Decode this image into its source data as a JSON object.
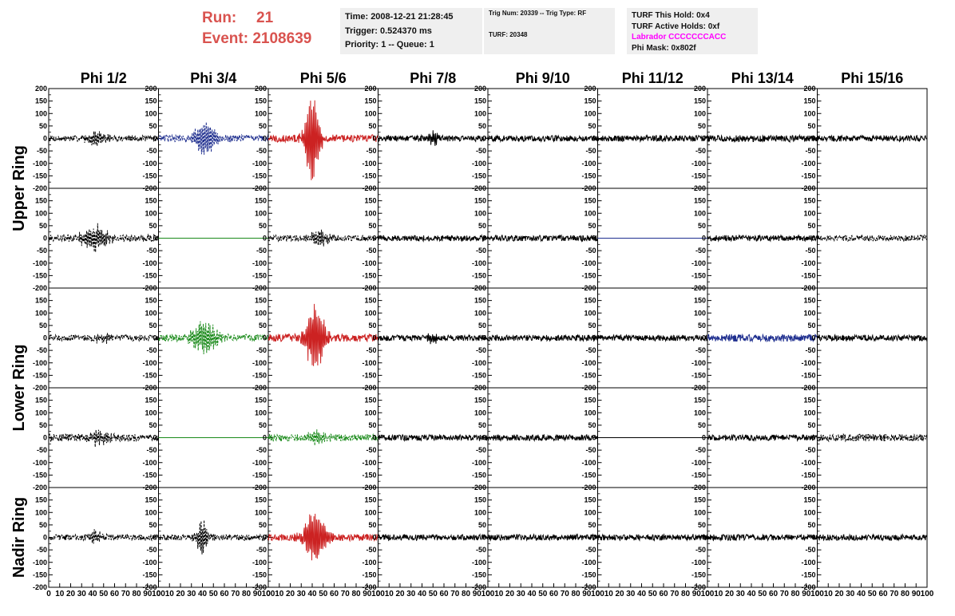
{
  "header": {
    "run_label": "Run:",
    "run_value": "21",
    "event_label": "Event:",
    "event_value": "2108639"
  },
  "info_time": {
    "time": "Time: 2008-12-21 21:28:45",
    "trigger": "Trigger: 0.524370 ms",
    "priority": "Priority: 1 -- Queue: 1"
  },
  "info_trig": {
    "trig": "Trig Num: 20339 -- Trig Type: RF",
    "turf": "TURF: 20348"
  },
  "info_turf": {
    "this_hold": "TURF This Hold: 0x4",
    "active_holds": "TURF Active Holds: 0xf",
    "labrador": "Labrador CCCCCCCACC",
    "phi_mask": "Phi Mask: 0x802f"
  },
  "chart_data": {
    "type": "line",
    "columns": [
      "Phi 1/2",
      "Phi 3/4",
      "Phi 5/6",
      "Phi 7/8",
      "Phi 9/10",
      "Phi 11/12",
      "Phi 13/14",
      "Phi 15/16"
    ],
    "ring_labels": [
      "Upper Ring",
      "Lower Ring",
      "Nadir Ring"
    ],
    "xlim": [
      0,
      100
    ],
    "ylim": [
      -200,
      200
    ],
    "x_ticks": [
      0,
      10,
      20,
      30,
      40,
      50,
      60,
      70,
      80,
      90,
      100
    ],
    "y_ticks": [
      -200,
      -150,
      -100,
      -50,
      0,
      50,
      100,
      150,
      200
    ],
    "x_tick_labels": [
      "0",
      "10",
      "20",
      "30",
      "40",
      "50",
      "60",
      "70",
      "80",
      "90",
      "100"
    ],
    "y_tick_labels": [
      "-200",
      "-150",
      "-100",
      "-50",
      "0",
      "50",
      "100",
      "150",
      "200"
    ],
    "row_colors": {
      "black": "#000000",
      "blue": "#1f2f8f",
      "red": "#cc2222",
      "green": "#1a8a1a"
    },
    "panels": [
      [
        {
          "color": "black",
          "dashed": true,
          "noise": 12,
          "burst": 30,
          "center": 45,
          "width": 10
        },
        {
          "color": "blue",
          "dashed": true,
          "noise": 14,
          "burst": 70,
          "center": 43,
          "width": 12
        },
        {
          "color": "red",
          "dashed": false,
          "noise": 15,
          "burst": 190,
          "center": 40,
          "width": 7
        },
        {
          "color": "black",
          "dashed": false,
          "noise": 12,
          "burst": 25,
          "center": 50,
          "width": 6
        },
        {
          "color": "black",
          "dashed": false,
          "noise": 12,
          "burst": 0,
          "center": 50,
          "width": 5
        },
        {
          "color": "black",
          "dashed": false,
          "noise": 12,
          "burst": 0,
          "center": 50,
          "width": 5
        },
        {
          "color": "black",
          "dashed": false,
          "noise": 13,
          "burst": 0,
          "center": 50,
          "width": 5
        },
        {
          "color": "black",
          "dashed": false,
          "noise": 12,
          "burst": 0,
          "center": 50,
          "width": 5
        }
      ],
      [
        {
          "color": "black",
          "dashed": true,
          "noise": 14,
          "burst": 55,
          "center": 42,
          "width": 12
        },
        {
          "color": "green",
          "dashed": false,
          "noise": 0,
          "burst": 0,
          "center": 50,
          "width": 5
        },
        {
          "color": "black",
          "dashed": true,
          "noise": 12,
          "burst": 35,
          "center": 47,
          "width": 9
        },
        {
          "color": "black",
          "dashed": false,
          "noise": 12,
          "burst": 0,
          "center": 50,
          "width": 5
        },
        {
          "color": "black",
          "dashed": false,
          "noise": 12,
          "burst": 0,
          "center": 50,
          "width": 5
        },
        {
          "color": "blue",
          "dashed": false,
          "noise": 0,
          "burst": 0,
          "center": 50,
          "width": 5
        },
        {
          "color": "black",
          "dashed": false,
          "noise": 12,
          "burst": 0,
          "center": 50,
          "width": 5
        },
        {
          "color": "black",
          "dashed": true,
          "noise": 12,
          "burst": 0,
          "center": 50,
          "width": 5
        }
      ],
      [
        {
          "color": "black",
          "dashed": true,
          "noise": 12,
          "burst": 20,
          "center": 48,
          "width": 8
        },
        {
          "color": "green",
          "dashed": true,
          "noise": 14,
          "burst": 75,
          "center": 42,
          "width": 12
        },
        {
          "color": "red",
          "dashed": false,
          "noise": 15,
          "burst": 140,
          "center": 43,
          "width": 9
        },
        {
          "color": "black",
          "dashed": false,
          "noise": 12,
          "burst": 20,
          "center": 50,
          "width": 6
        },
        {
          "color": "black",
          "dashed": false,
          "noise": 12,
          "burst": 0,
          "center": 50,
          "width": 5
        },
        {
          "color": "black",
          "dashed": false,
          "noise": 12,
          "burst": 0,
          "center": 50,
          "width": 5
        },
        {
          "color": "blue",
          "dashed": false,
          "noise": 15,
          "burst": 0,
          "center": 50,
          "width": 5
        },
        {
          "color": "black",
          "dashed": false,
          "noise": 12,
          "burst": 0,
          "center": 50,
          "width": 5
        }
      ],
      [
        {
          "color": "black",
          "dashed": true,
          "noise": 14,
          "burst": 30,
          "center": 45,
          "width": 10
        },
        {
          "color": "green",
          "dashed": false,
          "noise": 0,
          "burst": 0,
          "center": 50,
          "width": 5
        },
        {
          "color": "green",
          "dashed": true,
          "noise": 14,
          "burst": 25,
          "center": 45,
          "width": 10
        },
        {
          "color": "black",
          "dashed": false,
          "noise": 12,
          "burst": 0,
          "center": 50,
          "width": 5
        },
        {
          "color": "black",
          "dashed": false,
          "noise": 12,
          "burst": 0,
          "center": 50,
          "width": 5
        },
        {
          "color": "black",
          "dashed": false,
          "noise": 0,
          "burst": 0,
          "center": 50,
          "width": 5
        },
        {
          "color": "black",
          "dashed": false,
          "noise": 12,
          "burst": 0,
          "center": 50,
          "width": 5
        },
        {
          "color": "black",
          "dashed": true,
          "noise": 14,
          "burst": 0,
          "center": 50,
          "width": 5
        }
      ],
      [
        {
          "color": "black",
          "dashed": true,
          "noise": 12,
          "burst": 30,
          "center": 42,
          "width": 6
        },
        {
          "color": "black",
          "dashed": true,
          "noise": 12,
          "burst": 75,
          "center": 40,
          "width": 6
        },
        {
          "color": "red",
          "dashed": false,
          "noise": 14,
          "burst": 120,
          "center": 43,
          "width": 10
        },
        {
          "color": "black",
          "dashed": false,
          "noise": 12,
          "burst": 0,
          "center": 50,
          "width": 5
        },
        {
          "color": "black",
          "dashed": false,
          "noise": 12,
          "burst": 0,
          "center": 50,
          "width": 5
        },
        {
          "color": "black",
          "dashed": false,
          "noise": 12,
          "burst": 0,
          "center": 50,
          "width": 5
        },
        {
          "color": "black",
          "dashed": false,
          "noise": 12,
          "burst": 0,
          "center": 50,
          "width": 5
        },
        {
          "color": "black",
          "dashed": false,
          "noise": 12,
          "burst": 0,
          "center": 50,
          "width": 5
        }
      ]
    ]
  }
}
